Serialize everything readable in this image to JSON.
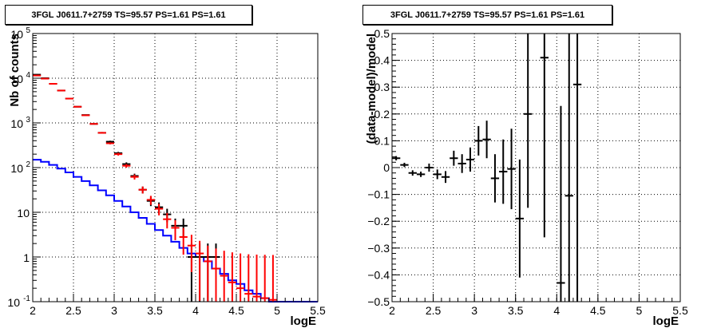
{
  "chart_data": [
    {
      "type": "histogram",
      "title": "3FGL J0611.7+2759 TS=95.57 PS=1.61 PS=1.61",
      "xlabel": "logE",
      "ylabel": "Nb of counts",
      "xlim": [
        2,
        5.5
      ],
      "ylim": [
        0.1,
        100000
      ],
      "yscale": "log",
      "grid": true,
      "x_ticks": [
        "2",
        "2.5",
        "3",
        "3.5",
        "4",
        "4.5",
        "5",
        "5.5"
      ],
      "y_ticks": [
        "10^-1",
        "1",
        "10",
        "10^2",
        "10^3",
        "10^4",
        "10^5"
      ],
      "series": [
        {
          "color": "#000000",
          "style": "errorbar",
          "points": [
            {
              "x": 2.05,
              "y": 12000
            },
            {
              "x": 2.15,
              "y": 10000
            },
            {
              "x": 2.25,
              "y": 7500
            },
            {
              "x": 2.35,
              "y": 5300
            },
            {
              "x": 2.45,
              "y": 3500
            },
            {
              "x": 2.55,
              "y": 2300
            },
            {
              "x": 2.65,
              "y": 1500
            },
            {
              "x": 2.75,
              "y": 950
            },
            {
              "x": 2.85,
              "y": 600
            },
            {
              "x": 2.95,
              "y": 380
            },
            {
              "x": 3.05,
              "y": 210
            },
            {
              "x": 3.15,
              "y": 120
            },
            {
              "x": 3.25,
              "y": 65
            },
            {
              "x": 3.35,
              "y": 32
            },
            {
              "x": 3.45,
              "y": 18
            },
            {
              "x": 3.55,
              "y": 13
            },
            {
              "x": 3.65,
              "y": 9
            },
            {
              "x": 3.75,
              "y": 5
            },
            {
              "x": 3.85,
              "y": 5
            },
            {
              "x": 3.95,
              "y": 1
            },
            {
              "x": 4.05,
              "y": 1
            },
            {
              "x": 4.15,
              "y": 1
            },
            {
              "x": 4.25,
              "y": 1
            }
          ]
        },
        {
          "color": "#ff0000",
          "style": "errorbar",
          "points": [
            {
              "x": 2.05,
              "y": 11500
            },
            {
              "x": 2.15,
              "y": 9800
            },
            {
              "x": 2.25,
              "y": 7500
            },
            {
              "x": 2.35,
              "y": 5300
            },
            {
              "x": 2.45,
              "y": 3500
            },
            {
              "x": 2.55,
              "y": 2300
            },
            {
              "x": 2.65,
              "y": 1480
            },
            {
              "x": 2.75,
              "y": 950
            },
            {
              "x": 2.85,
              "y": 600
            },
            {
              "x": 2.95,
              "y": 350
            },
            {
              "x": 3.05,
              "y": 200
            },
            {
              "x": 3.15,
              "y": 110
            },
            {
              "x": 3.25,
              "y": 62
            },
            {
              "x": 3.35,
              "y": 32
            },
            {
              "x": 3.45,
              "y": 19
            },
            {
              "x": 3.55,
              "y": 12
            },
            {
              "x": 3.65,
              "y": 7
            },
            {
              "x": 3.75,
              "y": 4.5
            },
            {
              "x": 3.85,
              "y": 2.8
            },
            {
              "x": 3.95,
              "y": 1.8
            },
            {
              "x": 4.05,
              "y": 1.2
            },
            {
              "x": 4.15,
              "y": 0.8
            },
            {
              "x": 4.25,
              "y": 0.55
            },
            {
              "x": 4.35,
              "y": 0.38
            },
            {
              "x": 4.45,
              "y": 0.27
            },
            {
              "x": 4.55,
              "y": 0.2
            },
            {
              "x": 4.65,
              "y": 0.15
            },
            {
              "x": 4.75,
              "y": 0.13
            },
            {
              "x": 4.85,
              "y": 0.12
            },
            {
              "x": 4.95,
              "y": 0.11
            }
          ]
        },
        {
          "color": "#0000ff",
          "style": "step",
          "bins": [
            {
              "x0": 2.0,
              "x1": 2.1,
              "y": 150
            },
            {
              "x0": 2.1,
              "x1": 2.2,
              "y": 135
            },
            {
              "x0": 2.2,
              "x1": 2.3,
              "y": 115
            },
            {
              "x0": 2.3,
              "x1": 2.4,
              "y": 95
            },
            {
              "x0": 2.4,
              "x1": 2.5,
              "y": 78
            },
            {
              "x0": 2.5,
              "x1": 2.6,
              "y": 62
            },
            {
              "x0": 2.6,
              "x1": 2.7,
              "y": 50
            },
            {
              "x0": 2.7,
              "x1": 2.8,
              "y": 40
            },
            {
              "x0": 2.8,
              "x1": 2.9,
              "y": 31
            },
            {
              "x0": 2.9,
              "x1": 3.0,
              "y": 24
            },
            {
              "x0": 3.0,
              "x1": 3.1,
              "y": 18
            },
            {
              "x0": 3.1,
              "x1": 3.2,
              "y": 13.5
            },
            {
              "x0": 3.2,
              "x1": 3.3,
              "y": 10
            },
            {
              "x0": 3.3,
              "x1": 3.4,
              "y": 7.5
            },
            {
              "x0": 3.4,
              "x1": 3.5,
              "y": 5.5
            },
            {
              "x0": 3.5,
              "x1": 3.6,
              "y": 4
            },
            {
              "x0": 3.6,
              "x1": 3.7,
              "y": 3
            },
            {
              "x0": 3.7,
              "x1": 3.8,
              "y": 2.2
            },
            {
              "x0": 3.8,
              "x1": 3.9,
              "y": 1.6
            },
            {
              "x0": 3.9,
              "x1": 4.0,
              "y": 1.2
            },
            {
              "x0": 4.0,
              "x1": 4.1,
              "y": 1.0
            },
            {
              "x0": 4.1,
              "x1": 4.2,
              "y": 0.8
            },
            {
              "x0": 4.2,
              "x1": 4.3,
              "y": 0.55
            },
            {
              "x0": 4.3,
              "x1": 4.4,
              "y": 0.42
            },
            {
              "x0": 4.4,
              "x1": 4.5,
              "y": 0.3
            },
            {
              "x0": 4.5,
              "x1": 4.6,
              "y": 0.25
            },
            {
              "x0": 4.6,
              "x1": 4.7,
              "y": 0.18
            },
            {
              "x0": 4.7,
              "x1": 4.8,
              "y": 0.15
            },
            {
              "x0": 4.8,
              "x1": 4.9,
              "y": 0.12
            },
            {
              "x0": 4.9,
              "x1": 5.0,
              "y": 0.1
            },
            {
              "x0": 5.0,
              "x1": 5.5,
              "y": 0.1
            }
          ]
        }
      ]
    },
    {
      "type": "scatter",
      "title": "3FGL J0611.7+2759 TS=95.57 PS=1.61 PS=1.61",
      "xlabel": "logE",
      "ylabel": "(data-model)/model",
      "xlim": [
        2,
        5.5
      ],
      "ylim": [
        -0.5,
        0.5
      ],
      "grid": true,
      "x_ticks": [
        "2",
        "2.5",
        "3",
        "3.5",
        "4",
        "4.5",
        "5",
        "5.5"
      ],
      "y_ticks": [
        "-0.5",
        "-0.4",
        "-0.3",
        "-0.2",
        "-0.1",
        "0",
        "0.1",
        "0.2",
        "0.3",
        "0.4",
        "0.5"
      ],
      "series": [
        {
          "color": "#000000",
          "points": [
            {
              "x": 2.05,
              "y": 0.035,
              "err": 0.008
            },
            {
              "x": 2.15,
              "y": 0.01,
              "err": 0.008
            },
            {
              "x": 2.25,
              "y": -0.02,
              "err": 0.01
            },
            {
              "x": 2.35,
              "y": -0.025,
              "err": 0.01
            },
            {
              "x": 2.45,
              "y": 0.0,
              "err": 0.015
            },
            {
              "x": 2.55,
              "y": -0.025,
              "err": 0.018
            },
            {
              "x": 2.65,
              "y": -0.035,
              "err": 0.022
            },
            {
              "x": 2.75,
              "y": 0.035,
              "err": 0.028
            },
            {
              "x": 2.85,
              "y": 0.015,
              "err": 0.035
            },
            {
              "x": 2.95,
              "y": 0.03,
              "err": 0.045
            },
            {
              "x": 3.05,
              "y": 0.1,
              "err": 0.055
            },
            {
              "x": 3.15,
              "y": 0.105,
              "err": 0.07
            },
            {
              "x": 3.25,
              "y": -0.04,
              "err": 0.09
            },
            {
              "x": 3.35,
              "y": -0.015,
              "err": 0.12
            },
            {
              "x": 3.45,
              "y": -0.005,
              "err": 0.15
            },
            {
              "x": 3.55,
              "y": -0.19,
              "err": 0.22
            },
            {
              "x": 3.65,
              "y": 0.2,
              "err": 0.35
            },
            {
              "x": 3.85,
              "y": 0.41,
              "err": 0.67
            },
            {
              "x": 4.05,
              "y": -0.43,
              "err": 0.66
            },
            {
              "x": 4.15,
              "y": -0.105,
              "err": 1.0
            },
            {
              "x": 4.25,
              "y": 0.31,
              "err": 1.0
            }
          ]
        }
      ]
    }
  ]
}
